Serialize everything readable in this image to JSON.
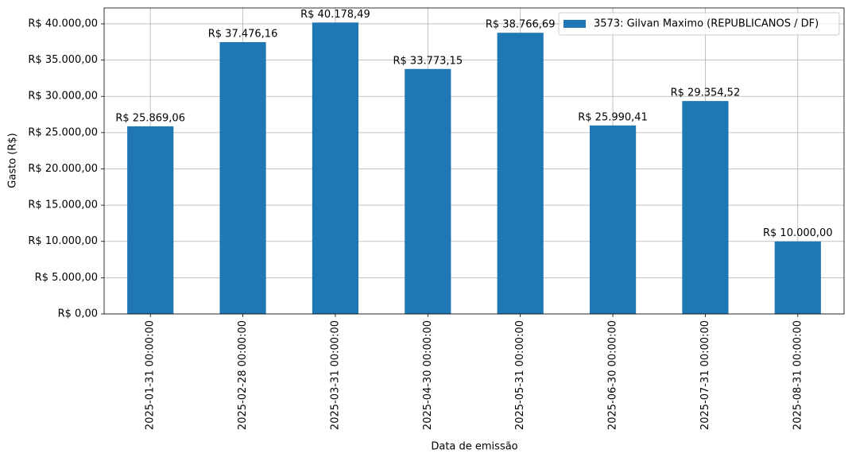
{
  "chart_data": {
    "type": "bar",
    "xlabel": "Data de emissão",
    "ylabel": "Gasto (R$)",
    "categories": [
      "2025-01-31 00:00:00",
      "2025-02-28 00:00:00",
      "2025-03-31 00:00:00",
      "2025-04-30 00:00:00",
      "2025-05-31 00:00:00",
      "2025-06-30 00:00:00",
      "2025-07-31 00:00:00",
      "2025-08-31 00:00:00"
    ],
    "series": [
      {
        "name": "3573: Gilvan Maximo (REPUBLICANOS / DF)",
        "color": "#1f77b4",
        "values": [
          25869.06,
          37476.16,
          40178.49,
          33773.15,
          38766.69,
          25990.41,
          29354.52,
          10000.0
        ],
        "value_labels": [
          "R$ 25.869,06",
          "R$ 37.476,16",
          "R$ 40.178,49",
          "R$ 33.773,15",
          "R$ 38.766,69",
          "R$ 25.990,41",
          "R$ 29.354,52",
          "R$ 10.000,00"
        ]
      }
    ],
    "ylim": [
      0,
      42187.41
    ],
    "yticks": [
      {
        "value": 0,
        "label": "R$ 0,00"
      },
      {
        "value": 5000,
        "label": "R$ 5.000,00"
      },
      {
        "value": 10000,
        "label": "R$ 10.000,00"
      },
      {
        "value": 15000,
        "label": "R$ 15.000,00"
      },
      {
        "value": 20000,
        "label": "R$ 20.000,00"
      },
      {
        "value": 25000,
        "label": "R$ 25.000,00"
      },
      {
        "value": 30000,
        "label": "R$ 30.000,00"
      },
      {
        "value": 35000,
        "label": "R$ 35.000,00"
      },
      {
        "value": 40000,
        "label": "R$ 40.000,00"
      }
    ],
    "grid": true,
    "legend": "upper right"
  }
}
